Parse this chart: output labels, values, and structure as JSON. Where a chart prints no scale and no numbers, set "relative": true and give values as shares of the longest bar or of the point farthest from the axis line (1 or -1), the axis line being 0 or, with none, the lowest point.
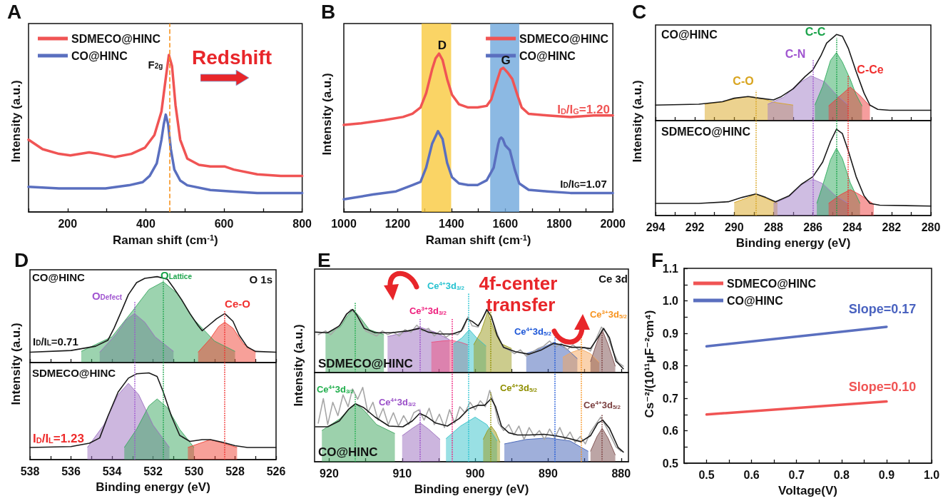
{
  "chart_data": [
    {
      "type": "line",
      "title": "A",
      "xlabel": "Raman shift (cm$^{-1}$)",
      "ylabel": "Intensity (a.u.)",
      "relative": true,
      "xlim": [
        100,
        800
      ],
      "xticks": [
        {
          "value": 100,
          "label": null
        },
        200,
        {
          "value": 300,
          "label": null
        },
        400,
        {
          "value": 500,
          "label": null
        },
        600,
        {
          "value": 700,
          "label": null
        },
        800
      ],
      "tick_labels": "x",
      "legend": "top left",
      "series": [
        {
          "name": "SDMECO@HINC",
          "color": "#f05454",
          "x": [
            100,
            136,
            178,
            207,
            255,
            279,
            321,
            363,
            398,
            422,
            440,
            452,
            459,
            467,
            476,
            488,
            506,
            536,
            565,
            601,
            625,
            685,
            745,
            800
          ],
          "values": [
            0.46,
            0.4,
            0.37,
            0.36,
            0.38,
            0.37,
            0.35,
            0.37,
            0.41,
            0.49,
            0.64,
            0.87,
            1.0,
            0.93,
            0.68,
            0.46,
            0.34,
            0.3,
            0.29,
            0.29,
            0.27,
            0.24,
            0.23,
            0.23
          ]
        },
        {
          "name": "CO@HINC",
          "color": "#5a6fbf",
          "x": [
            100,
            178,
            237,
            297,
            357,
            392,
            410,
            428,
            440,
            446,
            451,
            457,
            464,
            473,
            488,
            506,
            565,
            625,
            685,
            800
          ],
          "values": [
            0.16,
            0.15,
            0.15,
            0.15,
            0.17,
            0.19,
            0.23,
            0.31,
            0.46,
            0.56,
            0.62,
            0.56,
            0.4,
            0.27,
            0.2,
            0.17,
            0.14,
            0.13,
            0.12,
            0.12
          ]
        }
      ],
      "ref_lines": [
        {
          "axis": "x",
          "value": 460,
          "color": "#f7931e",
          "line_style": "dashed"
        }
      ],
      "annotations": [
        "F$_{2g}$",
        "Redshift"
      ]
    },
    {
      "type": "line",
      "title": "B",
      "xlabel": "Raman shift (cm$^{-1}$)",
      "ylabel": "Intensity (a.u.)",
      "relative": true,
      "xlim": [
        1000,
        2000
      ],
      "xticks": [
        1000,
        {
          "value": 1100,
          "label": null
        },
        1200,
        {
          "value": 1300,
          "label": null
        },
        1400,
        {
          "value": 1500,
          "label": null
        },
        1600,
        {
          "value": 1700,
          "label": null
        },
        1800,
        {
          "value": 1900,
          "label": null
        },
        2000
      ],
      "tick_labels": "x",
      "legend": "top right",
      "series": [
        {
          "name": "SDMECO@HINC",
          "color": "#f05454",
          "x": [
            1000,
            1065,
            1151,
            1220,
            1255,
            1285,
            1306,
            1328,
            1341,
            1354,
            1367,
            1384,
            1402,
            1428,
            1462,
            1497,
            1531,
            1548,
            1566,
            1583,
            1593,
            1609,
            1626,
            1643,
            1661,
            1687,
            1756,
            1842,
            1929,
            2000
          ],
          "values": [
            0.55,
            0.56,
            0.58,
            0.6,
            0.62,
            0.66,
            0.75,
            0.9,
            0.97,
            1.0,
            0.96,
            0.84,
            0.74,
            0.68,
            0.66,
            0.66,
            0.67,
            0.71,
            0.81,
            0.9,
            0.91,
            0.88,
            0.84,
            0.75,
            0.66,
            0.62,
            0.61,
            0.6,
            0.61,
            0.61
          ]
        },
        {
          "name": "CO@HINC",
          "color": "#5a6fbf",
          "x": [
            1000,
            1108,
            1194,
            1255,
            1285,
            1306,
            1328,
            1350,
            1367,
            1384,
            1402,
            1428,
            1462,
            1497,
            1531,
            1557,
            1574,
            1579,
            1585,
            1591,
            1600,
            1617,
            1635,
            1652,
            1687,
            1756,
            1842,
            2000
          ],
          "values": [
            0.08,
            0.11,
            0.13,
            0.17,
            0.19,
            0.28,
            0.43,
            0.51,
            0.46,
            0.31,
            0.22,
            0.18,
            0.17,
            0.17,
            0.2,
            0.28,
            0.43,
            0.46,
            0.47,
            0.46,
            0.42,
            0.39,
            0.27,
            0.18,
            0.14,
            0.13,
            0.12,
            0.12
          ]
        }
      ],
      "bands": [
        {
          "axis": "x",
          "from": 1289,
          "to": 1399,
          "color": "#f9c93e"
        },
        {
          "axis": "x",
          "from": 1544,
          "to": 1652,
          "color": "#6fa8dc"
        }
      ],
      "annotations": [
        "D",
        "G",
        "I$_{D}$/I$_{G}$=1.20",
        "I$_{D}$/I$_{G}$=1.07"
      ]
    },
    {
      "type": "area",
      "title": "C",
      "relative": true,
      "xlim": [
        294,
        280
      ],
      "xticks": [
        294,
        {
          "value": 293,
          "label": null
        },
        292,
        {
          "value": 291,
          "label": null
        },
        290,
        {
          "value": 289,
          "label": null
        },
        288,
        {
          "value": 287,
          "label": null
        },
        286,
        {
          "value": 285,
          "label": null
        },
        284,
        {
          "value": 283,
          "label": null
        },
        282,
        {
          "value": 281,
          "label": null
        },
        280
      ],
      "tick_labels": false,
      "series": [
        {
          "color": "#d9a520",
          "x": [
            291.5,
            290.5,
            289.9,
            289.2,
            288.5,
            287.9,
            287.0
          ],
          "values": [
            0.19,
            0.22,
            0.26,
            0.28,
            0.25,
            0.21,
            0.18
          ]
        },
        {
          "color": "#a07cc5",
          "x": [
            288.3,
            287.5,
            286.8,
            286.1,
            285.4,
            284.8,
            284.2
          ],
          "values": [
            0.19,
            0.27,
            0.42,
            0.52,
            0.45,
            0.3,
            0.18
          ]
        },
        {
          "color": "#2eaa5c",
          "x": [
            285.9,
            285.5,
            285.1,
            284.8,
            284.5,
            284.1,
            283.8,
            283.5
          ],
          "values": [
            0.18,
            0.4,
            0.7,
            0.79,
            0.68,
            0.48,
            0.3,
            0.17
          ]
        },
        {
          "color": "#ee3b3b",
          "x": [
            285.2,
            284.7,
            284.1,
            283.6,
            283.1
          ],
          "values": [
            0.17,
            0.27,
            0.39,
            0.29,
            0.17
          ]
        },
        {
          "type": "line",
          "color": "#1a1a1a",
          "x": [
            294.0,
            291.8,
            290.6,
            290.0,
            289.3,
            288.7,
            288.0,
            287.6,
            287.0,
            286.4,
            286.0,
            285.6,
            285.3,
            284.8,
            284.5,
            284.2,
            283.8,
            283.4,
            283.1,
            282.7,
            282.1,
            280.0
          ],
          "values": [
            0.18,
            0.19,
            0.22,
            0.26,
            0.28,
            0.26,
            0.24,
            0.28,
            0.37,
            0.51,
            0.59,
            0.75,
            0.9,
            1.0,
            0.98,
            0.84,
            0.57,
            0.32,
            0.18,
            0.13,
            0.12,
            0.12
          ]
        }
      ],
      "ref_lines": [
        {
          "axis": "x",
          "value": 288.9,
          "label": "C-O",
          "color": "#d9a520",
          "line_style": "dotted"
        },
        {
          "axis": "x",
          "value": 286.0,
          "label": "C-N",
          "color": "#a055d0",
          "line_style": "dotted"
        },
        {
          "axis": "x",
          "value": 284.8,
          "label": "C-C",
          "color": "#1aa34a",
          "line_style": "dotted"
        },
        {
          "axis": "x",
          "value": 284.2,
          "label": "C-Ce",
          "color": "#f0302f",
          "line_style": "dotted"
        }
      ],
      "annotations": [
        "CO@HINC"
      ]
    },
    {
      "type": "area",
      "xlabel": "Binding energy (eV)",
      "ylabel": "Intensity (a.u.)",
      "relative": true,
      "xlim": [
        294,
        280
      ],
      "xticks": [
        294,
        {
          "value": 293,
          "label": null
        },
        292,
        {
          "value": 291,
          "label": null
        },
        290,
        {
          "value": 289,
          "label": null
        },
        288,
        {
          "value": 287,
          "label": null
        },
        286,
        {
          "value": 285,
          "label": null
        },
        284,
        {
          "value": 283,
          "label": null
        },
        282,
        {
          "value": 281,
          "label": null
        },
        280
      ],
      "tick_labels": "x",
      "series": [
        {
          "color": "#d9a520",
          "x": [
            290.0,
            289.4,
            288.9,
            288.4,
            287.8
          ],
          "values": [
            0.15,
            0.2,
            0.25,
            0.2,
            0.14
          ]
        },
        {
          "color": "#a07cc5",
          "x": [
            288.0,
            287.2,
            286.5,
            286.0,
            285.5,
            284.9,
            284.2
          ],
          "values": [
            0.14,
            0.22,
            0.37,
            0.42,
            0.37,
            0.24,
            0.14
          ]
        },
        {
          "color": "#2eaa5c",
          "x": [
            285.8,
            285.5,
            285.1,
            284.8,
            284.5,
            284.1,
            283.6
          ],
          "values": [
            0.14,
            0.35,
            0.65,
            0.78,
            0.66,
            0.38,
            0.14
          ]
        },
        {
          "color": "#ee3b3b",
          "x": [
            285.2,
            284.6,
            284.1,
            283.6,
            282.9
          ],
          "values": [
            0.14,
            0.24,
            0.3,
            0.24,
            0.13
          ]
        },
        {
          "type": "line",
          "color": "#1a1a1a",
          "x": [
            294.0,
            291.8,
            290.3,
            289.6,
            288.9,
            288.4,
            287.9,
            287.2,
            286.6,
            286.0,
            285.5,
            285.1,
            284.8,
            284.5,
            284.2,
            283.8,
            283.4,
            283.1,
            282.6,
            280.0
          ],
          "values": [
            0.14,
            0.14,
            0.16,
            0.21,
            0.25,
            0.21,
            0.16,
            0.23,
            0.36,
            0.45,
            0.62,
            0.86,
            1.0,
            0.95,
            0.75,
            0.45,
            0.23,
            0.14,
            0.12,
            0.11
          ]
        }
      ],
      "ref_lines": [
        {
          "axis": "x",
          "value": 288.9,
          "color": "#d9a520",
          "line_style": "dotted"
        },
        {
          "axis": "x",
          "value": 286.0,
          "color": "#a055d0",
          "line_style": "dotted"
        },
        {
          "axis": "x",
          "value": 284.8,
          "color": "#1aa34a",
          "line_style": "dotted"
        },
        {
          "axis": "x",
          "value": 284.2,
          "color": "#f0302f",
          "line_style": "dotted"
        }
      ],
      "annotations": [
        "SDMECO@HINC"
      ]
    },
    {
      "type": "area",
      "title": "D",
      "relative": true,
      "xlim": [
        538,
        526
      ],
      "xticks": [
        538,
        {
          "value": 537,
          "label": null
        },
        536,
        {
          "value": 535,
          "label": null
        },
        534,
        {
          "value": 533,
          "label": null
        },
        532,
        {
          "value": 531,
          "label": null
        },
        530,
        {
          "value": 529,
          "label": null
        },
        528,
        {
          "value": 527,
          "label": null
        },
        526
      ],
      "tick_labels": false,
      "series": [
        {
          "color": "#9b6fc0",
          "x": [
            534.6,
            533.8,
            533.3,
            532.9,
            532.4,
            531.9,
            531.0
          ],
          "values": [
            0.12,
            0.33,
            0.5,
            0.57,
            0.47,
            0.3,
            0.13
          ]
        },
        {
          "color": "#3aa760",
          "x": [
            535.5,
            534.0,
            533.0,
            532.2,
            531.5,
            530.8,
            530.0,
            529.0,
            528.0
          ],
          "values": [
            0.13,
            0.3,
            0.6,
            0.85,
            0.94,
            0.8,
            0.5,
            0.25,
            0.13
          ]
        },
        {
          "color": "#ef4134",
          "x": [
            529.8,
            529.2,
            528.8,
            528.5,
            528.1,
            527.6,
            527.0
          ],
          "values": [
            0.12,
            0.28,
            0.42,
            0.47,
            0.4,
            0.22,
            0.12
          ]
        },
        {
          "type": "line",
          "color": "#1a1a1a",
          "x": [
            538.0,
            536.0,
            534.8,
            534.2,
            533.9,
            533.5,
            533.2,
            532.8,
            532.4,
            531.8,
            531.3,
            531.0,
            530.6,
            530.2,
            529.8,
            529.6,
            529.3,
            528.9,
            528.5,
            528.1,
            527.8,
            527.4,
            527.0,
            526.0
          ],
          "values": [
            0.12,
            0.14,
            0.19,
            0.26,
            0.4,
            0.62,
            0.79,
            0.93,
            0.98,
            1.0,
            0.97,
            0.87,
            0.73,
            0.57,
            0.43,
            0.37,
            0.43,
            0.51,
            0.57,
            0.48,
            0.32,
            0.18,
            0.13,
            0.12
          ]
        }
      ],
      "ref_lines": [
        {
          "axis": "x",
          "value": 532.9,
          "label": "O$_{Defect}$",
          "color": "#a055d0",
          "line_style": "dotted"
        },
        {
          "axis": "x",
          "value": 531.5,
          "label": "O$_{Lattice}$",
          "color": "#1aa34a",
          "line_style": "dotted"
        },
        {
          "axis": "x",
          "value": 528.5,
          "label": "Ce-O",
          "color": "#f0302f",
          "line_style": "dotted"
        }
      ],
      "annotations": [
        "CO@HINC",
        "O 1s",
        "I$_{D}$/I$_{L}$=0.71"
      ]
    },
    {
      "type": "area",
      "xlabel": "Binding energy (eV)",
      "ylabel": "Intensity (a.u.)",
      "relative": true,
      "xlim": [
        538,
        526
      ],
      "xticks": [
        538,
        {
          "value": 537,
          "label": null
        },
        536,
        {
          "value": 535,
          "label": null
        },
        534,
        {
          "value": 533,
          "label": null
        },
        532,
        {
          "value": 531,
          "label": null
        },
        530,
        {
          "value": 529,
          "label": null
        },
        528,
        {
          "value": 527,
          "label": null
        },
        526
      ],
      "tick_labels": "x",
      "series": [
        {
          "color": "#9b6fc0",
          "x": [
            535.2,
            534.4,
            533.7,
            533.2,
            532.7,
            532.0,
            531.2
          ],
          "values": [
            0.14,
            0.4,
            0.75,
            0.88,
            0.75,
            0.4,
            0.14
          ]
        },
        {
          "color": "#3aa760",
          "x": [
            533.4,
            532.8,
            532.2,
            531.8,
            531.3,
            530.7,
            530.0
          ],
          "values": [
            0.14,
            0.35,
            0.62,
            0.7,
            0.6,
            0.35,
            0.14
          ]
        },
        {
          "color": "#ef4134",
          "x": [
            530.3,
            529.7,
            529.2,
            528.6,
            527.9
          ],
          "values": [
            0.14,
            0.19,
            0.23,
            0.19,
            0.14
          ]
        },
        {
          "type": "line",
          "color": "#1a1a1a",
          "x": [
            538.0,
            536.0,
            535.1,
            534.6,
            534.2,
            533.7,
            533.2,
            532.8,
            532.2,
            531.8,
            531.5,
            531.1,
            530.7,
            530.2,
            529.6,
            529.2,
            528.6,
            528.0,
            527.4,
            526.0
          ],
          "values": [
            0.14,
            0.15,
            0.19,
            0.25,
            0.5,
            0.78,
            0.94,
            0.99,
            1.0,
            0.96,
            0.78,
            0.5,
            0.28,
            0.21,
            0.23,
            0.23,
            0.2,
            0.16,
            0.14,
            0.14
          ]
        }
      ],
      "ref_lines": [
        {
          "axis": "x",
          "value": 532.9,
          "color": "#a055d0",
          "line_style": "dotted"
        },
        {
          "axis": "x",
          "value": 531.5,
          "color": "#1aa34a",
          "line_style": "dotted"
        },
        {
          "axis": "x",
          "value": 528.5,
          "color": "#f0302f",
          "line_style": "dotted"
        }
      ],
      "annotations": [
        "SDMECO@HINC",
        "I$_{D}$/I$_{L}$=1.23"
      ]
    },
    {
      "type": "area",
      "title": "E",
      "relative": true,
      "xlim": [
        922,
        879
      ],
      "xticks": [
        920,
        {
          "value": 915,
          "label": null
        },
        910,
        {
          "value": 905,
          "label": null
        },
        900,
        {
          "value": 895,
          "label": null
        },
        890,
        {
          "value": 885,
          "label": null
        },
        880
      ],
      "tick_labels": false,
      "series": [
        {
          "color": "#3aa35a",
          "x": [
            920.5,
            918.5,
            917.5,
            916.7,
            915.8,
            914.5,
            912.5
          ],
          "values": [
            0.62,
            0.72,
            0.9,
            1.0,
            0.88,
            0.68,
            0.6
          ]
        },
        {
          "color": "#9a6bbd",
          "x": [
            912,
            909.5,
            907.6,
            905.5,
            903.5
          ],
          "values": [
            0.57,
            0.64,
            0.72,
            0.64,
            0.52
          ]
        },
        {
          "color": "#ec4f7d",
          "x": [
            906,
            904.5,
            903.2,
            902,
            901
          ],
          "values": [
            0.48,
            0.5,
            0.51,
            0.48,
            0.44
          ]
        },
        {
          "color": "#33c1c9",
          "x": [
            903,
            901.8,
            900.8,
            899.8,
            898.5
          ],
          "values": [
            0.45,
            0.55,
            0.68,
            0.55,
            0.42
          ]
        },
        {
          "color": "#9a9a1c",
          "x": [
            900.2,
            899.2,
            898.3,
            897.5,
            896.5,
            895
          ],
          "values": [
            0.44,
            0.65,
            0.96,
            0.7,
            0.46,
            0.38
          ]
        },
        {
          "color": "#3f5fb5",
          "x": [
            893,
            891,
            889.2,
            887.5,
            886
          ],
          "values": [
            0.3,
            0.38,
            0.48,
            0.38,
            0.22
          ]
        },
        {
          "color": "#f5a65b",
          "x": [
            888,
            886.8,
            885.5,
            884.2,
            883
          ],
          "values": [
            0.24,
            0.32,
            0.37,
            0.3,
            0.16
          ]
        },
        {
          "color": "#7a4b4b",
          "x": [
            884.2,
            883.4,
            882.6,
            881.8,
            880.8
          ],
          "values": [
            0.17,
            0.45,
            0.68,
            0.45,
            0.1
          ]
        },
        {
          "type": "line",
          "color": "#a6a6a6",
          "x": [
            921.5,
            920.5,
            919.8,
            919,
            918.3,
            917.6,
            917,
            916.3,
            915.6,
            915,
            914.2,
            913.5,
            912.7,
            912,
            911.2,
            910.4,
            909.6,
            908.8,
            908,
            907.2,
            906.4,
            905.6,
            904.8,
            904,
            903.2,
            902.4,
            901.6,
            901,
            900.4,
            899.6,
            899,
            898.4,
            897.8,
            897,
            896.2,
            895.4,
            894.6,
            893.8,
            893,
            892.2,
            891.4,
            890.6,
            889.8,
            889,
            888.2,
            887.4,
            886.6,
            885.8,
            885,
            884.2,
            883.4,
            882.7,
            882,
            881.2,
            880.4,
            879.7
          ],
          "values": [
            0.6,
            0.66,
            0.6,
            0.7,
            0.78,
            0.92,
            1.0,
            0.93,
            0.8,
            0.66,
            0.62,
            0.58,
            0.66,
            0.6,
            0.64,
            0.58,
            0.68,
            0.64,
            0.75,
            0.66,
            0.7,
            0.58,
            0.66,
            0.56,
            0.62,
            0.6,
            0.7,
            0.88,
            0.74,
            0.72,
            0.86,
            0.98,
            0.9,
            0.62,
            0.4,
            0.36,
            0.3,
            0.36,
            0.26,
            0.32,
            0.38,
            0.42,
            0.5,
            0.4,
            0.46,
            0.36,
            0.44,
            0.36,
            0.4,
            0.34,
            0.54,
            0.72,
            0.62,
            0.36,
            0.16,
            0.1
          ]
        },
        {
          "type": "line",
          "color": "#1a1a1a",
          "x": [
            921.9,
            920.2,
            918.6,
            917.6,
            916.8,
            916.2,
            915.2,
            913.7,
            911.5,
            909.2,
            907.6,
            906.4,
            904.8,
            903.1,
            901.9,
            901.1,
            900.4,
            899.6,
            899.0,
            898.4,
            897.8,
            897.0,
            896.1,
            894.5,
            892.6,
            890.9,
            889.3,
            888.1,
            886.8,
            885.5,
            884.2,
            883.2,
            882.4,
            881.6,
            880.7,
            879.7
          ],
          "values": [
            0.64,
            0.63,
            0.74,
            0.93,
            1.0,
            0.91,
            0.7,
            0.63,
            0.63,
            0.66,
            0.7,
            0.64,
            0.61,
            0.61,
            0.66,
            0.85,
            0.81,
            0.74,
            0.85,
            1.0,
            0.89,
            0.59,
            0.4,
            0.33,
            0.29,
            0.36,
            0.46,
            0.44,
            0.4,
            0.4,
            0.38,
            0.55,
            0.7,
            0.55,
            0.18,
            0.06
          ]
        }
      ],
      "ref_lines": [
        {
          "axis": "x",
          "value": 916.5,
          "color": "#1fae4b",
          "line_style": "dotted"
        },
        {
          "axis": "x",
          "value": 907.6,
          "color": "#9a4fc8",
          "line_style": "dotted"
        },
        {
          "axis": "x",
          "value": 903.2,
          "label": "Ce$^{3+}$3d$_{3/2}$",
          "color": "#ee1d7c",
          "line_style": "dotted"
        },
        {
          "axis": "x",
          "value": 900.9,
          "label": "Ce$^{4+}$3d$_{3/2}$",
          "color": "#26c2d0",
          "line_style": "dotted"
        },
        {
          "axis": "x",
          "value": 897.9,
          "color": "#8f8f00",
          "line_style": "dotted"
        },
        {
          "axis": "x",
          "value": 889.1,
          "label": "Ce$^{4+}$3d$_{5/2}$",
          "color": "#1d57d8",
          "line_style": "dotted"
        },
        {
          "axis": "x",
          "value": 885.5,
          "label": "Ce$^{3+}$3d$_{5/2}$",
          "color": "#f7931e",
          "line_style": "dotted"
        },
        {
          "axis": "x",
          "value": 882.6,
          "color": "#7b3f3f",
          "line_style": "dotted"
        }
      ],
      "annotations": [
        "SDMECO@HINC",
        "Ce 3d",
        "4f-center transfer"
      ]
    },
    {
      "type": "area",
      "xlabel": "Binding energy (eV)",
      "ylabel": "Intensity (a.u.)",
      "relative": true,
      "xlim": [
        922,
        879
      ],
      "xticks": [
        920,
        {
          "value": 915,
          "label": null
        },
        910,
        {
          "value": 905,
          "label": null
        },
        900,
        {
          "value": 895,
          "label": null
        },
        890,
        {
          "value": 885,
          "label": null
        },
        880
      ],
      "tick_labels": "x",
      "series": [
        {
          "color": "#3aa35a",
          "x": [
            921,
            918.5,
            917.2,
            916.4,
            915.3,
            913.5,
            911
          ],
          "values": [
            0.42,
            0.58,
            0.72,
            0.78,
            0.7,
            0.5,
            0.38
          ]
        },
        {
          "color": "#9a6bbd",
          "x": [
            910,
            908.6,
            907.5,
            906.4,
            904.8
          ],
          "values": [
            0.35,
            0.45,
            0.52,
            0.44,
            0.3
          ]
        },
        {
          "color": "#33c1c9",
          "x": [
            904,
            902,
            900.0,
            898.4,
            897
          ],
          "values": [
            0.31,
            0.48,
            0.6,
            0.5,
            0.28
          ]
        },
        {
          "color": "#9a9a1c",
          "x": [
            898.9,
            898.3,
            897.8,
            897.2,
            896.6
          ],
          "values": [
            0.3,
            0.42,
            0.48,
            0.4,
            0.26
          ]
        },
        {
          "color": "#3f5fb5",
          "x": [
            896,
            893,
            890.0,
            887,
            884.5
          ],
          "values": [
            0.24,
            0.3,
            0.32,
            0.28,
            0.14
          ]
        },
        {
          "color": "#7a4b4b",
          "x": [
            884.2,
            883.3,
            882.6,
            881.8,
            880.8
          ],
          "values": [
            0.14,
            0.34,
            0.45,
            0.32,
            0.09
          ]
        },
        {
          "type": "line",
          "color": "#a6a6a6",
          "x": [
            921.5,
            920.8,
            920.2,
            919.5,
            918.8,
            918.1,
            917.4,
            916.8,
            916.1,
            915.4,
            914.7,
            914,
            913.3,
            912.6,
            911.9,
            911.2,
            910.5,
            909.8,
            909.1,
            908.4,
            907.7,
            907,
            906.3,
            905.6,
            904.9,
            904.2,
            903.5,
            902.8,
            902.1,
            901.4,
            900.7,
            900,
            899.3,
            898.6,
            898,
            897.4,
            896.8,
            896.1,
            895.4,
            894.7,
            894,
            893.3,
            892.6,
            891.9,
            891.2,
            890.5,
            889.8,
            889.1,
            888.4,
            887.7,
            887,
            886.3,
            885.6,
            884.9,
            884.2,
            883.5,
            882.8,
            882.1,
            881.4,
            880.7,
            880
          ],
          "values": [
            0.52,
            0.85,
            0.5,
            0.8,
            0.62,
            0.9,
            0.74,
            0.98,
            0.84,
            1.0,
            0.66,
            0.8,
            0.56,
            0.72,
            0.5,
            0.66,
            0.48,
            0.62,
            0.5,
            0.66,
            0.7,
            0.56,
            0.72,
            0.5,
            0.64,
            0.46,
            0.7,
            0.52,
            0.74,
            0.66,
            0.8,
            0.7,
            0.82,
            0.74,
            0.96,
            0.78,
            0.52,
            0.42,
            0.5,
            0.36,
            0.48,
            0.3,
            0.46,
            0.34,
            0.42,
            0.3,
            0.44,
            0.32,
            0.46,
            0.3,
            0.4,
            0.26,
            0.34,
            0.24,
            0.4,
            0.5,
            0.6,
            0.48,
            0.34,
            0.2,
            0.14
          ]
        },
        {
          "type": "line",
          "color": "#1a1a1a",
          "x": [
            921.9,
            920.2,
            918.6,
            917.3,
            916.4,
            915.3,
            913.7,
            911.8,
            909.9,
            908.6,
            907.6,
            906.7,
            905.4,
            903.8,
            902.2,
            900.9,
            899.6,
            898.7,
            897.8,
            897.2,
            896.4,
            895.4,
            894.2,
            892.6,
            890.6,
            889.0,
            887.4,
            885.5,
            884.2,
            883.2,
            882.5,
            881.6,
            880.4,
            879.7
          ],
          "values": [
            0.47,
            0.47,
            0.55,
            0.71,
            0.78,
            0.73,
            0.6,
            0.48,
            0.47,
            0.55,
            0.65,
            0.61,
            0.52,
            0.48,
            0.58,
            0.71,
            0.76,
            0.76,
            0.85,
            0.74,
            0.48,
            0.39,
            0.36,
            0.36,
            0.37,
            0.35,
            0.32,
            0.27,
            0.35,
            0.52,
            0.56,
            0.45,
            0.19,
            0.13
          ]
        }
      ],
      "ref_lines": [
        {
          "axis": "x",
          "value": 916.5,
          "label": "Ce$^{4+}$3d$_{3/2}$",
          "color": "#1fae4b",
          "line_style": "dotted"
        },
        {
          "axis": "x",
          "value": 907.6,
          "label": "Ce$^{4+}$3d$_{3/2}$",
          "color": "#9a4fc8",
          "line_style": "dotted"
        },
        {
          "axis": "x",
          "value": 903.2,
          "color": "#ee1d7c",
          "line_style": "dotted"
        },
        {
          "axis": "x",
          "value": 900.9,
          "color": "#26c2d0",
          "line_style": "dotted"
        },
        {
          "axis": "x",
          "value": 897.9,
          "label": "Ce$^{4+}$3d$_{5/2}$",
          "color": "#8f8f00",
          "line_style": "dotted"
        },
        {
          "axis": "x",
          "value": 889.1,
          "color": "#1d57d8",
          "line_style": "dotted"
        },
        {
          "axis": "x",
          "value": 885.5,
          "color": "#f7931e",
          "line_style": "dotted"
        },
        {
          "axis": "x",
          "value": 882.6,
          "label": "Ce$^{4+}$3d$_{5/2}$",
          "color": "#7b3f3f",
          "line_style": "dotted"
        }
      ],
      "annotations": [
        "CO@HINC"
      ]
    },
    {
      "type": "line",
      "title": "F",
      "xlabel": "Voltage(V)",
      "ylabel": "Cs⁻²/(10¹¹μF⁻²cm⁴)",
      "xlim": [
        0.45,
        1.0
      ],
      "xticks": [
        0.5,
        {
          "value": 0.55,
          "label": null
        },
        0.6,
        {
          "value": 0.65,
          "label": null
        },
        0.7,
        {
          "value": 0.75,
          "label": null
        },
        0.8,
        {
          "value": 0.85,
          "label": null
        },
        0.9,
        {
          "value": 0.95,
          "label": null
        },
        {
          "value": 1,
          "label": "1.0"
        }
      ],
      "ylim": [
        0.5,
        1.1
      ],
      "yticks": [
        0.5,
        {
          "value": 0.55,
          "label": null
        },
        0.6,
        {
          "value": 0.65,
          "label": null
        },
        0.7,
        {
          "value": 0.75,
          "label": null
        },
        0.8,
        {
          "value": 0.85,
          "label": null
        },
        0.9,
        {
          "value": 0.95,
          "label": null
        },
        {
          "value": 1,
          "label": "1.0"
        },
        {
          "value": 1.05,
          "label": null
        },
        1.1
      ],
      "legend": "top left",
      "series": [
        {
          "name": "SDMECO@HINC",
          "color": "#f05454",
          "x": [
            0.5,
            0.9
          ],
          "values": [
            0.65,
            0.69
          ]
        },
        {
          "name": "CO@HINC",
          "color": "#5a6fbf",
          "x": [
            0.5,
            0.9
          ],
          "values": [
            0.86,
            0.92
          ]
        }
      ],
      "annotations": [
        "Slope=0.17",
        "Slope=0.10"
      ]
    }
  ]
}
